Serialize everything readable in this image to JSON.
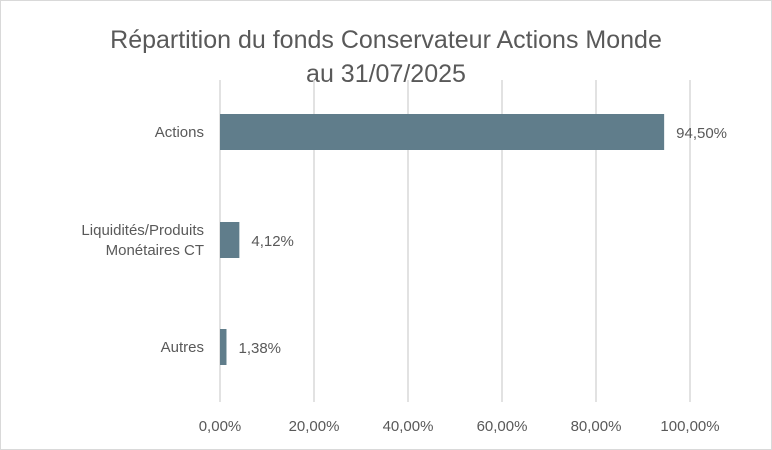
{
  "chart_data": {
    "type": "bar",
    "orientation": "horizontal",
    "title_lines": [
      "Répartition du fonds Conservateur Actions Monde",
      "au 31/07/2025"
    ],
    "categories": [
      [
        "Actions"
      ],
      [
        "Liquidités/Produits",
        "Monétaires CT"
      ],
      [
        "Autres"
      ]
    ],
    "values": [
      94.5,
      4.12,
      1.38
    ],
    "data_labels": [
      "94,50%",
      "4,12%",
      "1,38%"
    ],
    "xlim": [
      0,
      100
    ],
    "xticks": [
      0,
      20,
      40,
      60,
      80,
      100
    ],
    "xtick_labels": [
      "0,00%",
      "20,00%",
      "40,00%",
      "60,00%",
      "80,00%",
      "100,00%"
    ],
    "grid": "vertical",
    "legend": "none",
    "colors": {
      "bar": "#607d8b",
      "grid": "#d9d9d9",
      "text": "#595959"
    }
  }
}
